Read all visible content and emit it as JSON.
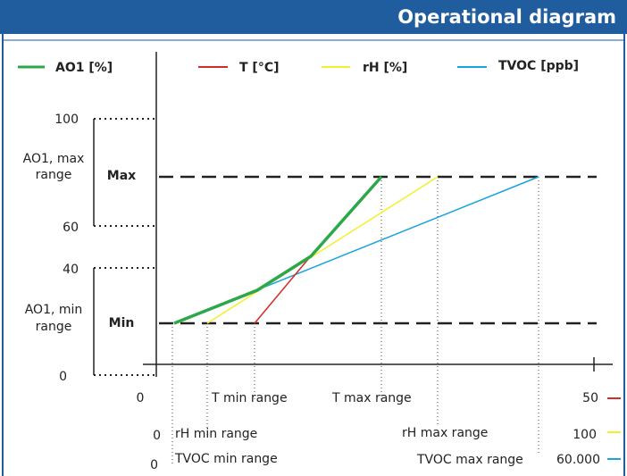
{
  "header": {
    "title": "Operational diagram"
  },
  "legend": [
    "AO1 [%]",
    "T [°C]",
    "rH [%]",
    "TVOC [ppb]"
  ],
  "y_labels": {
    "top": "100",
    "upper": "60",
    "lower": "40",
    "bottom": "0"
  },
  "ranges": {
    "max_line1": "AO1, max",
    "max_line2": "range",
    "max": "Max",
    "min_line1": "AO1, min",
    "min_line2": "range",
    "min": "Min"
  },
  "x_rows": [
    {
      "start": "0",
      "min": "T min range",
      "max": "T max range",
      "end": "50"
    },
    {
      "start": "0",
      "min": "rH min range",
      "max": "rH max range",
      "end": "100"
    },
    {
      "start": "0",
      "min": "TVOC min range",
      "max": "TVOC max range",
      "end": "60.000"
    }
  ]
}
